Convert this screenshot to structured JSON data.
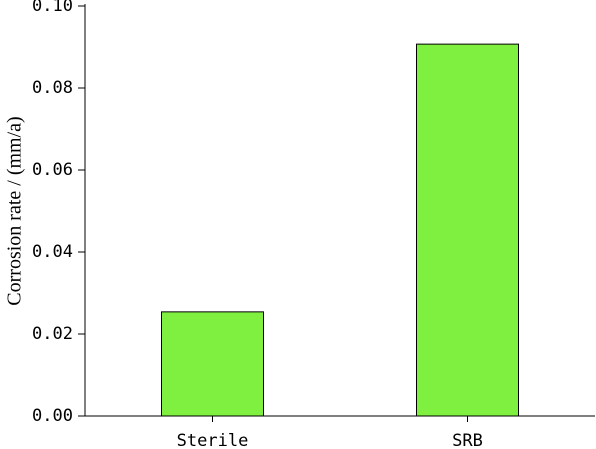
{
  "chart_data": {
    "type": "bar",
    "ylabel": "Corrosion rate / (mm/a)",
    "categories": [
      "Sterile",
      "SRB"
    ],
    "values": [
      0.0254,
      0.0907
    ],
    "color": "#80f040",
    "ylim": [
      0,
      0.1
    ],
    "yticks": [
      {
        "value": 0,
        "label": "0.00"
      },
      0.02,
      0.04,
      0.06,
      0.08,
      {
        "value": 0.1,
        "label": "0.10"
      }
    ]
  }
}
